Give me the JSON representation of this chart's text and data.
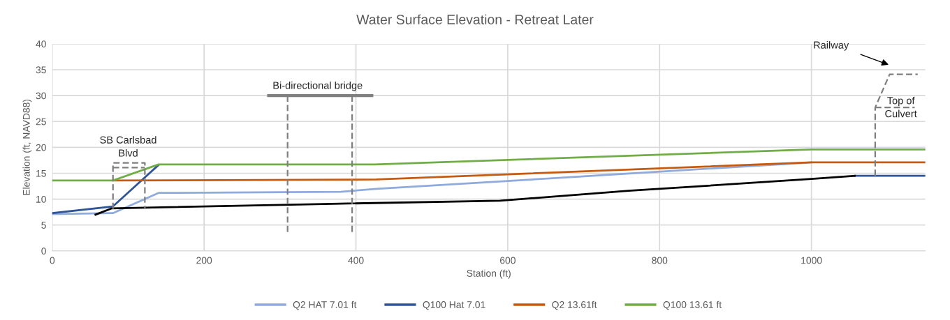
{
  "chart_data": {
    "type": "line",
    "title": "Water Surface Elevation - Retreat Later",
    "xlabel": "Station (ft)",
    "ylabel": "Elevation (ft, NAVD88)",
    "xlim": [
      0,
      1150
    ],
    "xticks": [
      0,
      200,
      400,
      600,
      800,
      1000
    ],
    "ylim": [
      0,
      40
    ],
    "yticks": [
      0,
      5,
      10,
      15,
      20,
      25,
      30,
      35,
      40
    ],
    "grid": true,
    "legend": "bottom",
    "marker": "none",
    "series": [
      {
        "name": "Q2 HAT 7.01 ft",
        "color": "#8faadc",
        "x": [
          0,
          80,
          140,
          380,
          427,
          600,
          1000
        ],
        "values": [
          7.1,
          7.3,
          11.2,
          11.4,
          12.0,
          13.5,
          17.1
        ]
      },
      {
        "name": "Q100 Hat 7.01",
        "color": "#2f5597",
        "x": [
          0,
          80,
          140,
          1000,
          1057,
          1150
        ],
        "values": [
          7.3,
          8.6,
          16.6,
          null,
          14.5,
          14.5
        ]
      },
      {
        "name": "Q2 13.61ft",
        "color": "#c55a11",
        "x": [
          80,
          427,
          1000,
          1150
        ],
        "values": [
          13.6,
          13.8,
          17.1,
          17.1
        ]
      },
      {
        "name": "Q100 13.61 ft",
        "color": "#70ad47",
        "x": [
          0,
          80,
          140,
          425,
          1000,
          1150
        ],
        "values": [
          13.6,
          13.6,
          16.7,
          16.7,
          19.6,
          19.6
        ]
      },
      {
        "color": "#000000",
        "x": [
          57,
          78,
          336,
          590,
          759,
          1000,
          1057
        ],
        "values": [
          7.0,
          8.2,
          9.0,
          9.7,
          11.6,
          13.9,
          14.5
        ]
      },
      {
        "color": "#7f7f7f",
        "line_style": "dashed",
        "x": [
          80,
          80,
          122,
          122
        ],
        "values": [
          8.1,
          17.0,
          17.0,
          8.1
        ]
      },
      {
        "color": "#7f7f7f",
        "line_style": "dashed",
        "x": [
          80,
          122
        ],
        "values": [
          16.1,
          16.1
        ]
      },
      {
        "color": "#7f7f7f",
        "x": [
          285,
          421
        ],
        "values": [
          30,
          30
        ]
      },
      {
        "color": "#7f7f7f",
        "line_style": "dashed",
        "x": [
          310,
          310
        ],
        "values": [
          30,
          3.4
        ]
      },
      {
        "color": "#7f7f7f",
        "line_style": "dashed",
        "x": [
          395,
          395
        ],
        "values": [
          30,
          3.4
        ]
      },
      {
        "color": "#7f7f7f",
        "line_style": "dashed",
        "x": [
          1084,
          1084,
          1103,
          1140
        ],
        "values": [
          14.5,
          27.7,
          34.1,
          34.1
        ]
      },
      {
        "color": "#7f7f7f",
        "line_style": "dashed",
        "x": [
          1084,
          1136
        ],
        "values": [
          27.7,
          27.7
        ]
      }
    ],
    "annotations": [
      "SB Carlsbad\nBlvd",
      "Bi-directional bridge",
      "Top of\nCulvert",
      "Railway"
    ]
  }
}
